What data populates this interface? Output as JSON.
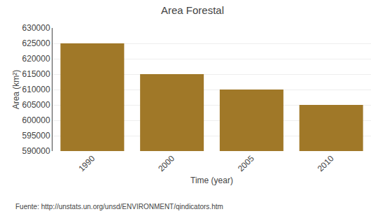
{
  "chart_data": {
    "type": "bar",
    "title": "Area Forestal",
    "xlabel": "Time (year)",
    "ylabel": "Area (km²)",
    "categories": [
      "1990",
      "2000",
      "2005",
      "2010"
    ],
    "values": [
      625000,
      615000,
      610000,
      605000
    ],
    "color": "#A07828",
    "ylim": [
      590000,
      630000
    ],
    "yticks": [
      590000,
      595000,
      600000,
      605000,
      610000,
      615000,
      620000,
      625000,
      630000
    ],
    "grid": true,
    "annotations": [
      "Fuente: http://unstats.un.org/unsd/ENVIRONMENT/qindicators.htm"
    ]
  }
}
